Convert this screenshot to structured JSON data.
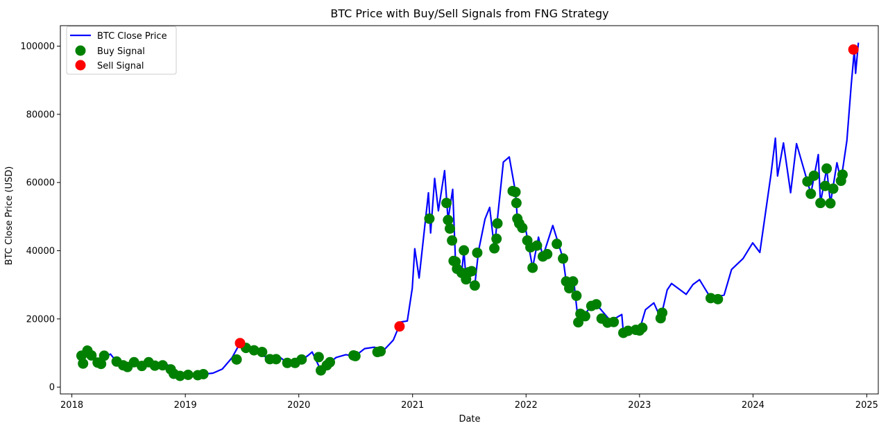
{
  "chart_data": {
    "type": "line",
    "title": "BTC Price with Buy/Sell Signals from FNG Strategy",
    "xlabel": "Date",
    "ylabel": "BTC Close Price (USD)",
    "xlim": [
      "2017-11-25",
      "2025-02-07"
    ],
    "ylim": [
      -2000,
      106000
    ],
    "grid": false,
    "legend_position": "top-left",
    "x_ticks": [
      "2018",
      "2019",
      "2020",
      "2021",
      "2022",
      "2023",
      "2024",
      "2025"
    ],
    "y_ticks": [
      0,
      20000,
      40000,
      60000,
      80000,
      100000
    ],
    "y_tick_labels": [
      "0",
      "20000",
      "40000",
      "60000",
      "80000",
      "100000"
    ],
    "colors": {
      "line": "#0000ff",
      "buy": "#008000",
      "sell": "#ff0000"
    },
    "series": [
      {
        "name": "BTC Close Price",
        "kind": "line",
        "points": [
          [
            "2018-02-01",
            9200
          ],
          [
            "2018-02-06",
            6900
          ],
          [
            "2018-02-15",
            10200
          ],
          [
            "2018-02-20",
            11200
          ],
          [
            "2018-03-01",
            10300
          ],
          [
            "2018-03-18",
            8200
          ],
          [
            "2018-04-05",
            6800
          ],
          [
            "2018-04-20",
            8800
          ],
          [
            "2018-05-05",
            9700
          ],
          [
            "2018-05-25",
            7400
          ],
          [
            "2018-06-15",
            6400
          ],
          [
            "2018-06-29",
            5900
          ],
          [
            "2018-07-25",
            8200
          ],
          [
            "2018-08-14",
            6200
          ],
          [
            "2018-09-05",
            7300
          ],
          [
            "2018-09-20",
            6400
          ],
          [
            "2018-10-15",
            6700
          ],
          [
            "2018-11-10",
            6400
          ],
          [
            "2018-11-20",
            4500
          ],
          [
            "2018-12-15",
            3300
          ],
          [
            "2018-12-31",
            3800
          ],
          [
            "2019-01-31",
            3500
          ],
          [
            "2019-02-28",
            3800
          ],
          [
            "2019-03-31",
            4100
          ],
          [
            "2019-04-30",
            5300
          ],
          [
            "2019-05-31",
            8600
          ],
          [
            "2019-06-26",
            12900
          ],
          [
            "2019-07-15",
            10200
          ],
          [
            "2019-08-05",
            11900
          ],
          [
            "2019-08-31",
            9600
          ],
          [
            "2019-09-24",
            8500
          ],
          [
            "2019-10-26",
            9200
          ],
          [
            "2019-11-25",
            7100
          ],
          [
            "2019-12-31",
            7200
          ],
          [
            "2020-01-31",
            9300
          ],
          [
            "2020-02-13",
            10300
          ],
          [
            "2020-03-12",
            4900
          ],
          [
            "2020-03-31",
            6400
          ],
          [
            "2020-04-30",
            8700
          ],
          [
            "2020-05-31",
            9500
          ],
          [
            "2020-06-30",
            9100
          ],
          [
            "2020-07-31",
            11300
          ],
          [
            "2020-08-31",
            11700
          ],
          [
            "2020-09-30",
            10800
          ],
          [
            "2020-10-31",
            13800
          ],
          [
            "2020-11-24",
            19100
          ],
          [
            "2020-12-15",
            19400
          ],
          [
            "2020-12-31",
            29000
          ],
          [
            "2021-01-08",
            40600
          ],
          [
            "2021-01-22",
            32000
          ],
          [
            "2021-02-21",
            57000
          ],
          [
            "2021-02-28",
            45200
          ],
          [
            "2021-03-13",
            61200
          ],
          [
            "2021-03-25",
            51700
          ],
          [
            "2021-04-14",
            63500
          ],
          [
            "2021-04-25",
            49000
          ],
          [
            "2021-05-10",
            58000
          ],
          [
            "2021-05-19",
            37000
          ],
          [
            "2021-06-08",
            33500
          ],
          [
            "2021-06-15",
            40100
          ],
          [
            "2021-06-22",
            31600
          ],
          [
            "2021-07-20",
            29800
          ],
          [
            "2021-08-01",
            39900
          ],
          [
            "2021-08-22",
            49300
          ],
          [
            "2021-09-06",
            52700
          ],
          [
            "2021-09-21",
            40700
          ],
          [
            "2021-10-20",
            66000
          ],
          [
            "2021-11-08",
            67500
          ],
          [
            "2021-11-28",
            57200
          ],
          [
            "2021-12-04",
            49400
          ],
          [
            "2021-12-31",
            46300
          ],
          [
            "2022-01-22",
            35000
          ],
          [
            "2022-02-10",
            44000
          ],
          [
            "2022-02-24",
            38300
          ],
          [
            "2022-03-28",
            47400
          ],
          [
            "2022-04-30",
            37700
          ],
          [
            "2022-05-10",
            31000
          ],
          [
            "2022-06-05",
            29900
          ],
          [
            "2022-06-18",
            19000
          ],
          [
            "2022-07-30",
            23800
          ],
          [
            "2022-08-15",
            24300
          ],
          [
            "2022-09-30",
            19400
          ],
          [
            "2022-11-05",
            21300
          ],
          [
            "2022-11-10",
            15900
          ],
          [
            "2022-12-31",
            16500
          ],
          [
            "2023-01-20",
            22700
          ],
          [
            "2023-02-16",
            24700
          ],
          [
            "2023-03-10",
            20200
          ],
          [
            "2023-03-31",
            28500
          ],
          [
            "2023-04-14",
            30400
          ],
          [
            "2023-05-31",
            27200
          ],
          [
            "2023-06-22",
            30100
          ],
          [
            "2023-07-13",
            31500
          ],
          [
            "2023-08-18",
            26100
          ],
          [
            "2023-09-30",
            27000
          ],
          [
            "2023-10-24",
            34500
          ],
          [
            "2023-11-30",
            37700
          ],
          [
            "2023-12-31",
            42300
          ],
          [
            "2024-01-23",
            39500
          ],
          [
            "2024-02-28",
            62500
          ],
          [
            "2024-03-13",
            73000
          ],
          [
            "2024-03-20",
            61900
          ],
          [
            "2024-04-08",
            71600
          ],
          [
            "2024-05-01",
            57000
          ],
          [
            "2024-05-20",
            71400
          ],
          [
            "2024-06-24",
            60300
          ],
          [
            "2024-07-05",
            56700
          ],
          [
            "2024-07-29",
            68200
          ],
          [
            "2024-08-05",
            54000
          ],
          [
            "2024-08-25",
            64100
          ],
          [
            "2024-09-06",
            53900
          ],
          [
            "2024-09-27",
            65800
          ],
          [
            "2024-10-10",
            60500
          ],
          [
            "2024-10-29",
            72300
          ],
          [
            "2024-11-12",
            88700
          ],
          [
            "2024-11-22",
            98900
          ],
          [
            "2024-11-26",
            92000
          ],
          [
            "2024-12-05",
            101000
          ]
        ]
      },
      {
        "name": "Buy Signal",
        "kind": "scatter",
        "points": [
          [
            "2018-02-01",
            9200
          ],
          [
            "2018-02-06",
            6900
          ],
          [
            "2018-02-20",
            10700
          ],
          [
            "2018-03-05",
            9300
          ],
          [
            "2018-03-25",
            7200
          ],
          [
            "2018-04-05",
            6800
          ],
          [
            "2018-04-15",
            9200
          ],
          [
            "2018-05-25",
            7500
          ],
          [
            "2018-06-15",
            6400
          ],
          [
            "2018-06-29",
            5900
          ],
          [
            "2018-07-20",
            7300
          ],
          [
            "2018-08-14",
            6200
          ],
          [
            "2018-09-05",
            7300
          ],
          [
            "2018-09-25",
            6300
          ],
          [
            "2018-10-20",
            6400
          ],
          [
            "2018-11-15",
            5200
          ],
          [
            "2018-11-25",
            3900
          ],
          [
            "2018-12-15",
            3300
          ],
          [
            "2019-01-10",
            3600
          ],
          [
            "2019-02-10",
            3500
          ],
          [
            "2019-02-28",
            3800
          ],
          [
            "2019-06-15",
            8100
          ],
          [
            "2019-07-15",
            11500
          ],
          [
            "2019-08-10",
            10800
          ],
          [
            "2019-09-05",
            10300
          ],
          [
            "2019-09-30",
            8200
          ],
          [
            "2019-10-20",
            8200
          ],
          [
            "2019-11-25",
            7100
          ],
          [
            "2019-12-20",
            7100
          ],
          [
            "2020-01-10",
            8100
          ],
          [
            "2020-03-05",
            8800
          ],
          [
            "2020-03-12",
            4900
          ],
          [
            "2020-03-31",
            6400
          ],
          [
            "2020-04-10",
            7300
          ],
          [
            "2020-06-25",
            9300
          ],
          [
            "2020-07-01",
            9100
          ],
          [
            "2020-09-10",
            10300
          ],
          [
            "2020-09-20",
            10500
          ],
          [
            "2021-02-24",
            49400
          ],
          [
            "2021-04-20",
            54000
          ],
          [
            "2021-04-25",
            49000
          ],
          [
            "2021-05-01",
            46500
          ],
          [
            "2021-05-08",
            43000
          ],
          [
            "2021-05-13",
            37000
          ],
          [
            "2021-05-19",
            36800
          ],
          [
            "2021-05-24",
            34700
          ],
          [
            "2021-06-08",
            33500
          ],
          [
            "2021-06-15",
            40100
          ],
          [
            "2021-06-22",
            31600
          ],
          [
            "2021-07-01",
            33700
          ],
          [
            "2021-07-10",
            34000
          ],
          [
            "2021-07-20",
            29800
          ],
          [
            "2021-07-28",
            39400
          ],
          [
            "2021-09-21",
            40700
          ],
          [
            "2021-09-28",
            43500
          ],
          [
            "2021-10-01",
            48000
          ],
          [
            "2021-11-19",
            57500
          ],
          [
            "2021-11-28",
            57200
          ],
          [
            "2021-12-01",
            54000
          ],
          [
            "2021-12-04",
            49400
          ],
          [
            "2021-12-10",
            48000
          ],
          [
            "2021-12-20",
            46700
          ],
          [
            "2022-01-05",
            43000
          ],
          [
            "2022-01-15",
            41000
          ],
          [
            "2022-01-22",
            35000
          ],
          [
            "2022-02-05",
            41500
          ],
          [
            "2022-02-24",
            38300
          ],
          [
            "2022-03-10",
            39000
          ],
          [
            "2022-04-10",
            42000
          ],
          [
            "2022-04-30",
            37700
          ],
          [
            "2022-05-10",
            31000
          ],
          [
            "2022-05-20",
            29000
          ],
          [
            "2022-06-01",
            31000
          ],
          [
            "2022-06-12",
            26800
          ],
          [
            "2022-06-18",
            19000
          ],
          [
            "2022-06-25",
            21500
          ],
          [
            "2022-07-10",
            20800
          ],
          [
            "2022-07-30",
            23800
          ],
          [
            "2022-08-15",
            24300
          ],
          [
            "2022-09-01",
            20100
          ],
          [
            "2022-09-20",
            18900
          ],
          [
            "2022-10-10",
            19100
          ],
          [
            "2022-11-10",
            15900
          ],
          [
            "2022-11-25",
            16500
          ],
          [
            "2022-12-20",
            16800
          ],
          [
            "2023-01-01",
            16600
          ],
          [
            "2023-01-10",
            17400
          ],
          [
            "2023-03-10",
            20200
          ],
          [
            "2023-03-15",
            21800
          ],
          [
            "2023-08-18",
            26100
          ],
          [
            "2023-09-10",
            25800
          ],
          [
            "2024-06-24",
            60300
          ],
          [
            "2024-07-05",
            56700
          ],
          [
            "2024-07-15",
            62000
          ],
          [
            "2024-08-05",
            54000
          ],
          [
            "2024-08-20",
            59000
          ],
          [
            "2024-09-06",
            53900
          ],
          [
            "2024-09-15",
            58200
          ],
          [
            "2024-10-10",
            60500
          ],
          [
            "2024-10-15",
            62300
          ],
          [
            "2024-08-25",
            64100
          ]
        ]
      },
      {
        "name": "Sell Signal",
        "kind": "scatter",
        "points": [
          [
            "2019-06-26",
            12900
          ],
          [
            "2020-11-20",
            17800
          ],
          [
            "2024-11-19",
            99000
          ]
        ]
      }
    ]
  }
}
